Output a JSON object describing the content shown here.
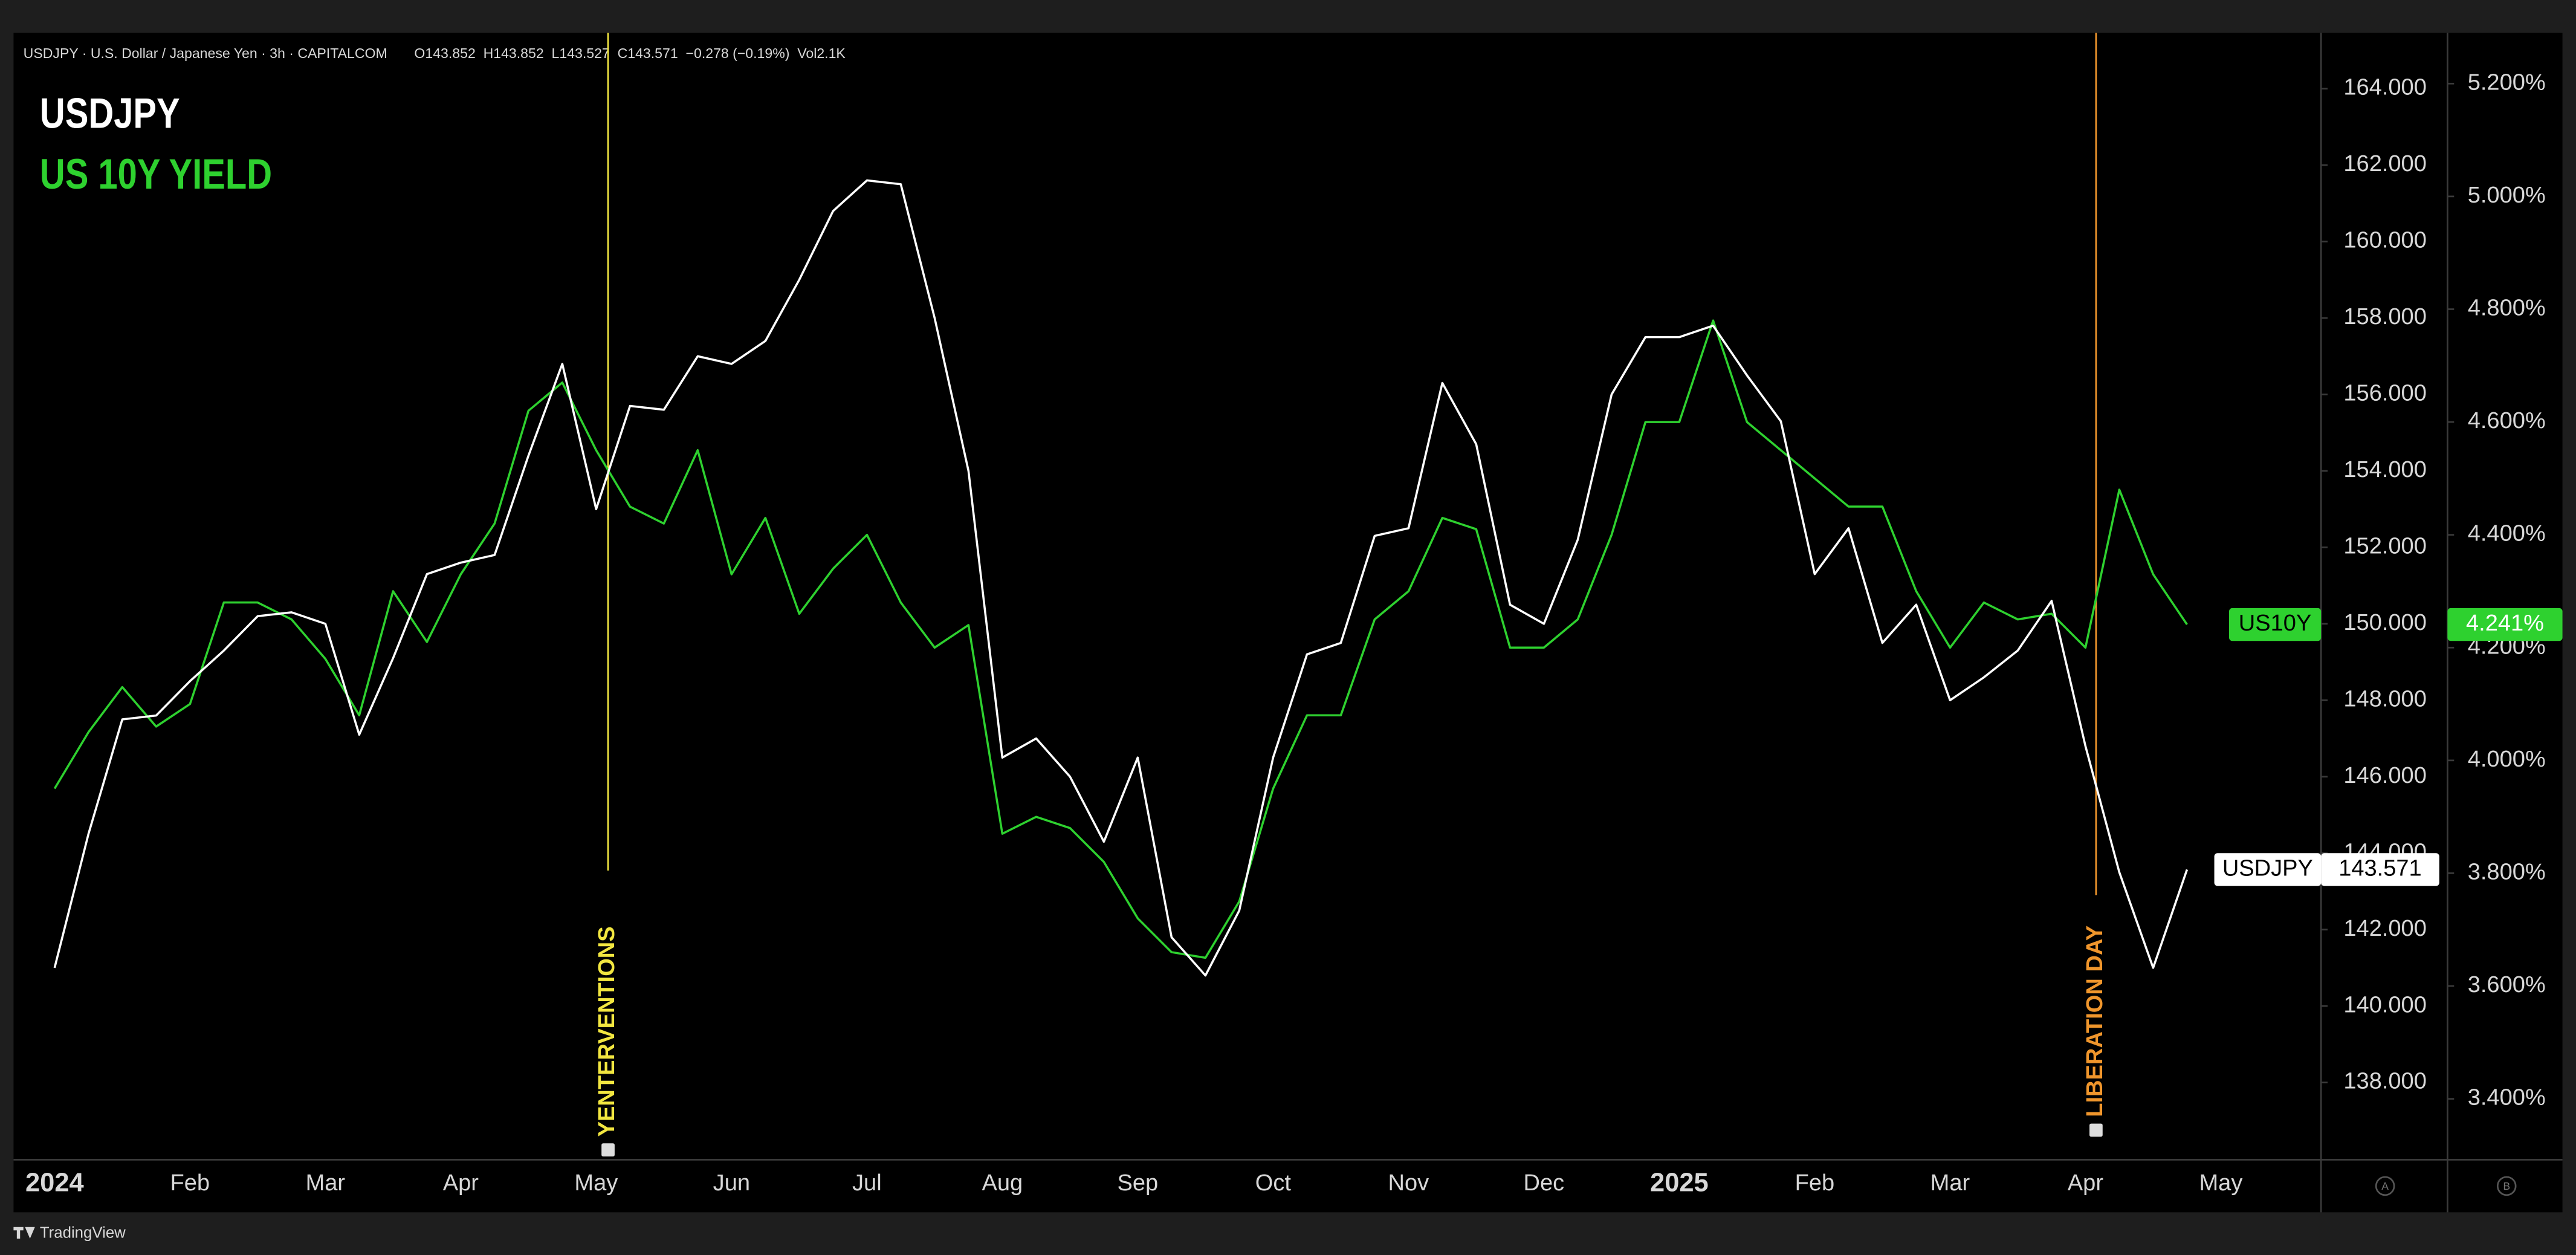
{
  "chart_data": {
    "type": "line",
    "symbol_info": "USDJPY · U.S. Dollar / Japanese Yen · 3h · CAPITALCOM",
    "ohlc": "O143.852  H143.852  L143.527  C143.571  −0.278 (−0.19%)  Vol2.1K",
    "categories": [
      "2024",
      null,
      null,
      null,
      "Feb",
      null,
      null,
      null,
      "Mar",
      null,
      null,
      null,
      "Apr",
      null,
      null,
      null,
      "May",
      null,
      null,
      null,
      "Jun",
      null,
      null,
      null,
      "Jul",
      null,
      null,
      null,
      "Aug",
      null,
      null,
      null,
      "Sep",
      null,
      null,
      null,
      "Oct",
      null,
      null,
      null,
      "Nov",
      null,
      null,
      null,
      "Dec",
      null,
      null,
      null,
      "2025",
      null,
      null,
      null,
      "Feb",
      null,
      null,
      null,
      "Mar",
      null,
      null,
      null,
      "Apr",
      null,
      null,
      null,
      "May"
    ],
    "series": [
      {
        "name": "USDJPY",
        "tag": "USDJPY",
        "price_label": "143.571",
        "color": "#ffffff",
        "axis": "y",
        "values": [
          141.0,
          144.5,
          147.5,
          147.6,
          148.5,
          149.3,
          150.2,
          150.3,
          150.0,
          147.1,
          149.1,
          151.3,
          151.6,
          151.8,
          154.4,
          156.8,
          153.0,
          155.7,
          155.6,
          157.0,
          156.8,
          157.4,
          159.0,
          160.8,
          161.6,
          161.5,
          158.0,
          154.0,
          146.5,
          147.0,
          146.0,
          144.3,
          146.5,
          141.8,
          140.8,
          142.5,
          146.5,
          149.2,
          149.5,
          152.3,
          152.5,
          156.3,
          154.7,
          150.5,
          150.0,
          152.2,
          156.0,
          157.5,
          157.5,
          157.8,
          156.5,
          155.3,
          151.3,
          152.5,
          149.5,
          150.5,
          148.0,
          148.6,
          149.3,
          150.6,
          146.8,
          143.5,
          141.0,
          143.571,
          null
        ]
      },
      {
        "name": "US 10Y YIELD",
        "tag": "US10Y",
        "price_label": "4.241%",
        "color": "#2ed12f",
        "axis": "y2",
        "values": [
          3.95,
          4.05,
          4.13,
          4.06,
          4.1,
          4.28,
          4.28,
          4.25,
          4.18,
          4.08,
          4.3,
          4.21,
          4.33,
          4.42,
          4.62,
          4.67,
          4.55,
          4.45,
          4.42,
          4.55,
          4.33,
          4.43,
          4.26,
          4.34,
          4.4,
          4.28,
          4.2,
          4.24,
          3.87,
          3.9,
          3.88,
          3.82,
          3.72,
          3.66,
          3.65,
          3.75,
          3.95,
          4.08,
          4.08,
          4.25,
          4.3,
          4.43,
          4.41,
          4.2,
          4.2,
          4.25,
          4.4,
          4.6,
          4.6,
          4.78,
          4.6,
          4.55,
          4.5,
          4.45,
          4.45,
          4.3,
          4.2,
          4.28,
          4.25,
          4.26,
          4.2,
          4.48,
          4.33,
          4.241,
          null
        ]
      }
    ],
    "ylim": [
      135.98,
      165.46
    ],
    "yticks": [
      {
        "value": 138,
        "label": "138.000"
      },
      {
        "value": 140,
        "label": "140.000"
      },
      {
        "value": 142,
        "label": "142.000"
      },
      {
        "value": 144,
        "label": "144.000"
      },
      {
        "value": 146,
        "label": "146.000"
      },
      {
        "value": 148,
        "label": "148.000"
      },
      {
        "value": 150,
        "label": "150.000"
      },
      {
        "value": 152,
        "label": "152.000"
      },
      {
        "value": 154,
        "label": "154.000"
      },
      {
        "value": 156,
        "label": "156.000"
      },
      {
        "value": 158,
        "label": "158.000"
      },
      {
        "value": 160,
        "label": "160.000"
      },
      {
        "value": 162,
        "label": "162.000"
      },
      {
        "value": 164,
        "label": "164.000"
      }
    ],
    "y2lim": [
      3.292,
      5.29
    ],
    "y2ticks": [
      {
        "value": 3.4,
        "label": "3.400%"
      },
      {
        "value": 3.6,
        "label": "3.600%"
      },
      {
        "value": 3.8,
        "label": "3.800%"
      },
      {
        "value": 4.0,
        "label": "4.000%"
      },
      {
        "value": 4.2,
        "label": "4.200%"
      },
      {
        "value": 4.4,
        "label": "4.400%"
      },
      {
        "value": 4.6,
        "label": "4.600%"
      },
      {
        "value": 4.8,
        "label": "4.800%"
      },
      {
        "value": 5.0,
        "label": "5.000%"
      },
      {
        "value": 5.2,
        "label": "5.200%"
      }
    ],
    "grid": false,
    "annotations": [
      {
        "text": "YENTERVENTIONS",
        "color": "#f2e640"
      },
      {
        "text": "LIBERATION DAY",
        "color": "#f0962c"
      }
    ],
    "scale_buttons": [
      "A",
      "B"
    ],
    "branding": "TradingView"
  }
}
